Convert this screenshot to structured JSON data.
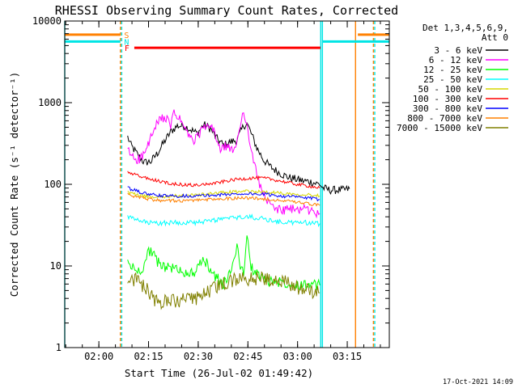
{
  "chart_data": {
    "type": "line",
    "title": "RHESSI Observing Summary Count Rates, Corrected",
    "xlabel": "Start Time (26-Jul-02 01:49:42)",
    "ylabel": "Corrected Count Rate (s⁻¹ detector⁻¹)",
    "yscale": "log",
    "x_unit": "minutes after 01:49:42",
    "xlim": [
      0,
      98
    ],
    "ylim": [
      1,
      10000
    ],
    "x_ticks": [
      {
        "value": 10.3,
        "label": "02:00"
      },
      {
        "value": 25.3,
        "label": "02:15"
      },
      {
        "value": 40.3,
        "label": "02:30"
      },
      {
        "value": 55.3,
        "label": "02:45"
      },
      {
        "value": 70.3,
        "label": "03:00"
      },
      {
        "value": 85.3,
        "label": "03:15"
      }
    ],
    "y_ticks": [
      {
        "value": 1,
        "label": "1"
      },
      {
        "value": 10,
        "label": "10"
      },
      {
        "value": 100,
        "label": "100"
      },
      {
        "value": 1000,
        "label": "1000"
      },
      {
        "value": 10000,
        "label": "10000"
      }
    ],
    "legend_header": [
      "Det 1,3,4,5,6,9,",
      "Att 0"
    ],
    "flags": [
      {
        "letter": "S",
        "color": "#ff8000",
        "level": 6800,
        "segments": [
          [
            0,
            16.8
          ],
          [
            88.5,
            98
          ]
        ]
      },
      {
        "letter": "N",
        "color": "#00e5e5",
        "level": 5600,
        "segments": [
          [
            0,
            16.8
          ],
          [
            77.8,
            98
          ]
        ]
      },
      {
        "letter": "F",
        "color": "#ff0000",
        "level": 4700,
        "segments": [
          [
            21,
            77.2
          ]
        ]
      }
    ],
    "vlines": [
      {
        "x": 0,
        "color": "#00e5e5",
        "dash": false
      },
      {
        "x": 16.8,
        "color": "#ff8000",
        "dash": true
      },
      {
        "x": 17.2,
        "color": "#00e5e5",
        "dash": true
      },
      {
        "x": 77.3,
        "color": "#00e5e5",
        "dash": false
      },
      {
        "x": 77.8,
        "color": "#00e5e5",
        "dash": false
      },
      {
        "x": 87.8,
        "color": "#ff8000",
        "dash": false
      },
      {
        "x": 93.2,
        "color": "#ff8000",
        "dash": true
      },
      {
        "x": 93.6,
        "color": "#00e5e5",
        "dash": true
      }
    ],
    "series": [
      {
        "name": "3 - 6 keV",
        "color": "#000000",
        "x": [
          19,
          20,
          22,
          24,
          26,
          28,
          30,
          32,
          34,
          36,
          38,
          40,
          42,
          44,
          46,
          48,
          50,
          52,
          54,
          55,
          56,
          58,
          60,
          62,
          64,
          66,
          68,
          70,
          72,
          74,
          76,
          77,
          78,
          80,
          82,
          84,
          86
        ],
        "y": [
          380,
          300,
          230,
          185,
          190,
          240,
          330,
          440,
          520,
          520,
          470,
          420,
          540,
          480,
          360,
          300,
          330,
          350,
          520,
          560,
          450,
          280,
          200,
          165,
          145,
          130,
          120,
          115,
          110,
          108,
          102,
          100,
          90,
          85,
          85,
          85,
          88
        ]
      },
      {
        "name": "6 - 12 keV",
        "color": "#ff00ff",
        "x": [
          19,
          20,
          22,
          24,
          26,
          28,
          30,
          32,
          33,
          35,
          37,
          39,
          41,
          43,
          45,
          47,
          49,
          51,
          53,
          54,
          55,
          56,
          57,
          58,
          60,
          62,
          64,
          66,
          68,
          70,
          72,
          74,
          76,
          77
        ],
        "y": [
          260,
          230,
          200,
          230,
          370,
          560,
          680,
          520,
          760,
          600,
          420,
          330,
          440,
          520,
          460,
          260,
          300,
          240,
          520,
          820,
          560,
          260,
          200,
          130,
          75,
          55,
          50,
          48,
          50,
          48,
          52,
          47,
          45,
          44
        ]
      },
      {
        "name": "12 - 25 keV",
        "color": "#00ff00",
        "x": [
          19,
          20,
          22,
          24,
          25,
          26,
          27,
          28,
          30,
          32,
          34,
          36,
          38,
          40,
          42,
          44,
          46,
          48,
          50,
          51,
          52,
          53,
          54,
          55,
          56,
          58,
          60,
          62,
          64,
          66,
          68,
          70,
          72,
          74,
          76,
          77
        ],
        "y": [
          11,
          10,
          8.5,
          10,
          14,
          16,
          13,
          11,
          10,
          9.5,
          9,
          8.5,
          8,
          9,
          12,
          9,
          7,
          6,
          8,
          12,
          18,
          10,
          8,
          25,
          10,
          8,
          7,
          6.5,
          6.5,
          6.3,
          6.2,
          6.0,
          6.0,
          5.8,
          5.8,
          5.8
        ]
      },
      {
        "name": "25 - 50 keV",
        "color": "#00ffff",
        "x": [
          19,
          22,
          25,
          28,
          31,
          34,
          37,
          40,
          43,
          46,
          49,
          52,
          55,
          58,
          61,
          64,
          67,
          70,
          73,
          76,
          77
        ],
        "y": [
          40,
          36,
          34,
          33,
          34,
          34,
          34,
          34,
          35,
          37,
          38,
          39,
          40,
          39,
          37,
          35,
          34,
          34,
          34,
          33,
          33
        ]
      },
      {
        "name": "50 - 100 keV",
        "color": "#d7d700",
        "x": [
          19,
          22,
          25,
          28,
          31,
          34,
          37,
          40,
          43,
          46,
          49,
          52,
          55,
          58,
          61,
          64,
          67,
          70,
          73,
          76,
          77
        ],
        "y": [
          80,
          74,
          71,
          70,
          71,
          72,
          73,
          74,
          76,
          78,
          80,
          81,
          82,
          81,
          80,
          79,
          77,
          76,
          75,
          73,
          72
        ]
      },
      {
        "name": "100 - 300 keV",
        "color": "#ff0000",
        "x": [
          19,
          22,
          25,
          28,
          31,
          34,
          37,
          40,
          43,
          46,
          49,
          52,
          55,
          58,
          61,
          64,
          67,
          70,
          73,
          76,
          77
        ],
        "y": [
          140,
          128,
          118,
          110,
          104,
          100,
          98,
          98,
          100,
          104,
          110,
          115,
          118,
          120,
          118,
          112,
          106,
          100,
          96,
          92,
          90
        ]
      },
      {
        "name": "300 - 800 keV",
        "color": "#0000ff",
        "x": [
          19,
          22,
          25,
          28,
          31,
          34,
          37,
          40,
          43,
          46,
          49,
          52,
          55,
          58,
          61,
          64,
          67,
          70,
          73,
          76,
          77
        ],
        "y": [
          90,
          82,
          76,
          73,
          72,
          72,
          72,
          72,
          73,
          74,
          75,
          76,
          77,
          76,
          75,
          73,
          71,
          70,
          68,
          66,
          65
        ]
      },
      {
        "name": "800 - 7000 keV",
        "color": "#ff8000",
        "x": [
          19,
          22,
          25,
          28,
          31,
          34,
          37,
          40,
          43,
          46,
          49,
          52,
          55,
          58,
          61,
          64,
          67,
          70,
          73,
          76,
          77
        ],
        "y": [
          75,
          70,
          66,
          64,
          63,
          63,
          63,
          64,
          65,
          66,
          67,
          68,
          68,
          67,
          66,
          64,
          62,
          60,
          58,
          56,
          55
        ]
      },
      {
        "name": "7000 - 15000 keV",
        "color": "#808000",
        "x": [
          19,
          20,
          22,
          24,
          26,
          28,
          30,
          32,
          34,
          36,
          38,
          40,
          42,
          44,
          46,
          48,
          50,
          52,
          54,
          56,
          58,
          60,
          62,
          64,
          66,
          68,
          70,
          72,
          74,
          76,
          77
        ],
        "y": [
          7.5,
          7,
          6.5,
          5.5,
          4.5,
          3.5,
          3.6,
          3.7,
          3.7,
          3.8,
          3.8,
          4.0,
          4.5,
          5.0,
          5.5,
          6.0,
          6.5,
          7.0,
          7.0,
          7.0,
          7.0,
          7.0,
          7.0,
          6.8,
          6.5,
          6.0,
          5.5,
          5.2,
          5.0,
          4.8,
          4.7
        ]
      }
    ]
  },
  "footer": {
    "timestamp": "17-Oct-2021 14:09"
  }
}
